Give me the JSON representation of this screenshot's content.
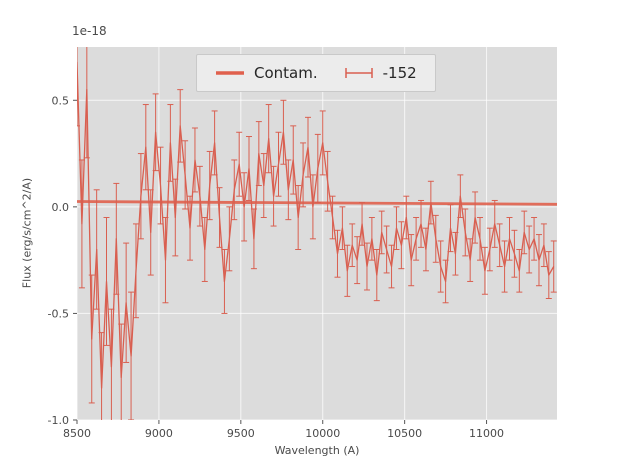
{
  "chart_data": {
    "type": "line",
    "title": "",
    "xlabel": "Wavelength (A)",
    "ylabel": "Flux (erg/s/cm^2/A)",
    "offset_text": "1e-18",
    "xlim": [
      8500,
      11430
    ],
    "ylim": [
      -1.0,
      0.75
    ],
    "xticks": [
      8500,
      9000,
      9500,
      10000,
      10500,
      11000
    ],
    "yticks": [
      -1.0,
      -0.5,
      0.0,
      0.5
    ],
    "grid": true,
    "legend": {
      "position": "upper center"
    },
    "colors": {
      "axes_bg": "#dcdcdc",
      "grid": "#ffffff",
      "tick": "#555555",
      "tick_label": "#4a4a4a"
    },
    "series": [
      {
        "name": "Contam.",
        "type": "line",
        "color": "#e0604d",
        "x": [
          8500,
          11430
        ],
        "y": [
          0.025,
          0.012
        ]
      },
      {
        "name": "-152",
        "type": "errorbar",
        "color": "#d95f50",
        "x": [
          8500,
          8530,
          8560,
          8590,
          8620,
          8650,
          8680,
          8710,
          8740,
          8770,
          8800,
          8830,
          8860,
          8890,
          8920,
          8950,
          8980,
          9010,
          9040,
          9070,
          9100,
          9130,
          9160,
          9190,
          9220,
          9250,
          9280,
          9310,
          9340,
          9370,
          9400,
          9430,
          9460,
          9490,
          9520,
          9550,
          9580,
          9610,
          9640,
          9670,
          9700,
          9730,
          9760,
          9790,
          9820,
          9850,
          9880,
          9910,
          9940,
          9970,
          10000,
          10030,
          10060,
          10090,
          10120,
          10150,
          10180,
          10210,
          10240,
          10270,
          10300,
          10330,
          10360,
          10390,
          10420,
          10450,
          10480,
          10510,
          10540,
          10570,
          10600,
          10630,
          10660,
          10690,
          10720,
          10750,
          10780,
          10810,
          10840,
          10870,
          10900,
          10930,
          10960,
          10990,
          11020,
          11050,
          11080,
          11110,
          11140,
          11170,
          11200,
          11230,
          11260,
          11290,
          11320,
          11350,
          11380,
          11410
        ],
        "y": [
          0.68,
          -0.08,
          0.55,
          -0.62,
          -0.2,
          -0.85,
          -0.35,
          -0.75,
          -0.15,
          -0.8,
          -0.45,
          -0.7,
          -0.3,
          0.05,
          0.28,
          -0.12,
          0.35,
          0.1,
          -0.25,
          0.3,
          -0.05,
          0.38,
          0.15,
          -0.1,
          0.22,
          0.05,
          -0.2,
          0.1,
          0.3,
          -0.05,
          -0.35,
          -0.15,
          0.08,
          0.2,
          0.0,
          0.18,
          -0.15,
          0.25,
          0.1,
          0.32,
          0.05,
          0.2,
          0.35,
          0.08,
          0.22,
          -0.05,
          0.15,
          0.28,
          0.0,
          0.18,
          0.3,
          0.12,
          -0.05,
          -0.22,
          -0.1,
          -0.3,
          -0.18,
          -0.25,
          -0.08,
          -0.28,
          -0.15,
          -0.32,
          -0.12,
          -0.2,
          -0.28,
          -0.1,
          -0.18,
          -0.05,
          -0.25,
          -0.15,
          -0.08,
          -0.2,
          0.02,
          -0.15,
          -0.28,
          -0.35,
          -0.1,
          -0.22,
          0.05,
          -0.12,
          -0.25,
          -0.05,
          -0.15,
          -0.3,
          -0.2,
          -0.08,
          -0.18,
          -0.28,
          -0.15,
          -0.22,
          -0.3,
          -0.12,
          -0.2,
          -0.15,
          -0.25,
          -0.18,
          -0.32,
          -0.28
        ],
        "yerr": [
          0.3,
          0.3,
          0.32,
          0.3,
          0.28,
          0.26,
          0.3,
          0.27,
          0.26,
          0.25,
          0.28,
          0.3,
          0.22,
          0.2,
          0.2,
          0.2,
          0.18,
          0.18,
          0.2,
          0.18,
          0.18,
          0.17,
          0.16,
          0.15,
          0.15,
          0.14,
          0.15,
          0.16,
          0.15,
          0.14,
          0.15,
          0.15,
          0.14,
          0.15,
          0.16,
          0.15,
          0.14,
          0.15,
          0.15,
          0.16,
          0.14,
          0.15,
          0.15,
          0.14,
          0.16,
          0.15,
          0.15,
          0.14,
          0.15,
          0.16,
          0.15,
          0.14,
          0.1,
          0.11,
          0.1,
          0.12,
          0.1,
          0.11,
          0.1,
          0.11,
          0.1,
          0.12,
          0.1,
          0.11,
          0.1,
          0.1,
          0.11,
          0.1,
          0.12,
          0.1,
          0.11,
          0.1,
          0.1,
          0.11,
          0.12,
          0.1,
          0.11,
          0.1,
          0.1,
          0.11,
          0.1,
          0.12,
          0.1,
          0.11,
          0.1,
          0.11,
          0.1,
          0.12,
          0.1,
          0.11,
          0.1,
          0.1,
          0.11,
          0.1,
          0.12,
          0.1,
          0.11,
          0.12
        ]
      }
    ]
  }
}
